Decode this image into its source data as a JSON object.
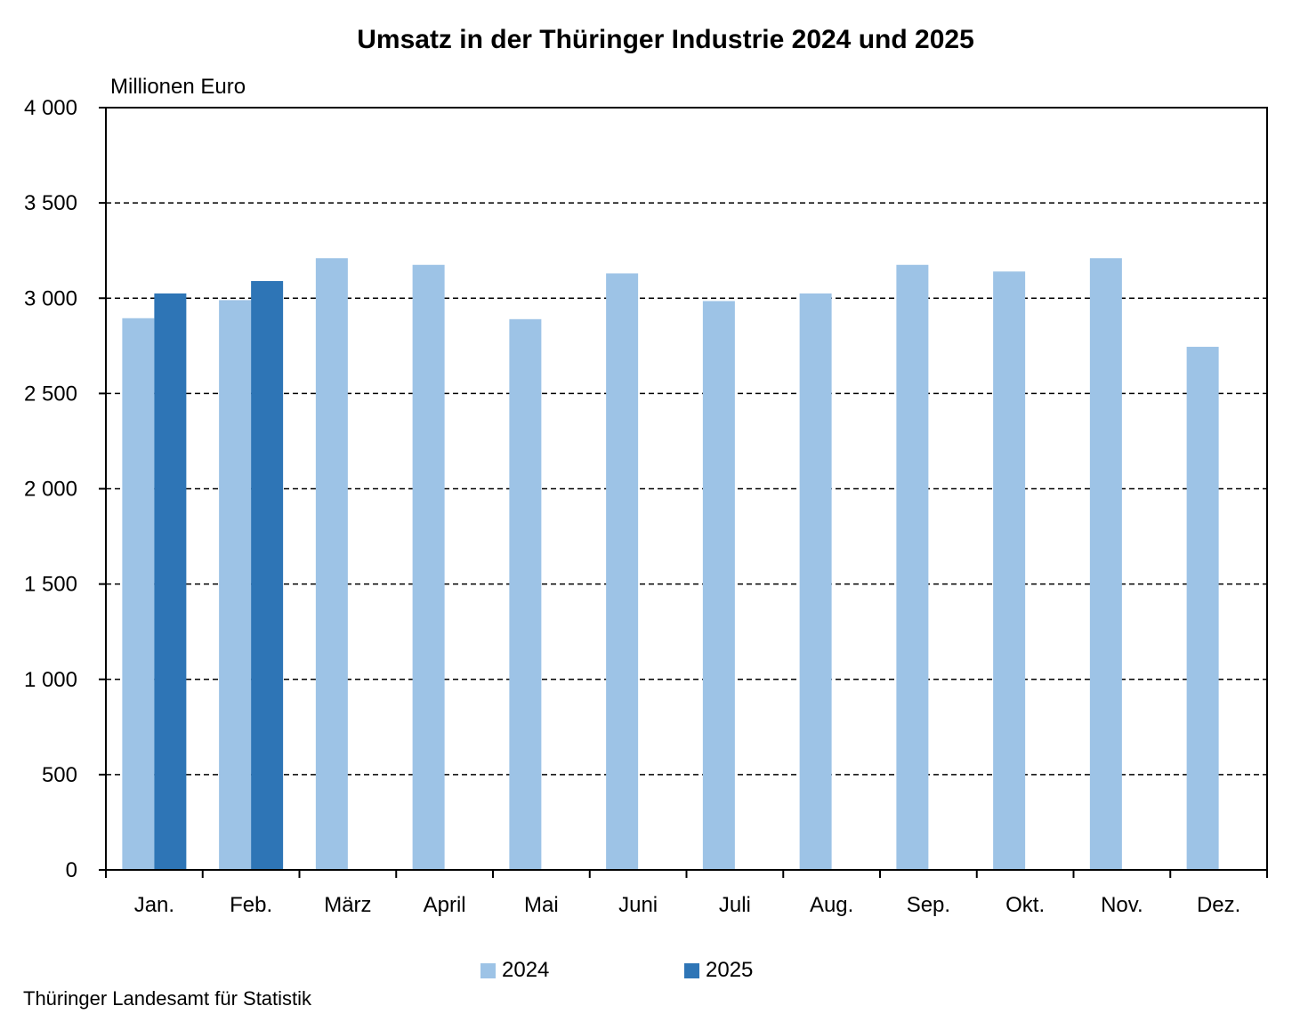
{
  "chart_data": {
    "type": "bar",
    "title": "Umsatz in der Thüringer Industrie 2024 und 2025",
    "ylabel": "Millionen Euro",
    "xlabel": "",
    "categories": [
      "Jan.",
      "Feb.",
      "März",
      "April",
      "Mai",
      "Juni",
      "Juli",
      "Aug.",
      "Sep.",
      "Okt.",
      "Nov.",
      "Dez."
    ],
    "series": [
      {
        "name": "2024",
        "color": "#9dc3e6",
        "values": [
          2895,
          2990,
          3210,
          3175,
          2890,
          3130,
          2985,
          3025,
          3175,
          3140,
          3210,
          2745
        ]
      },
      {
        "name": "2025",
        "color": "#2e75b6",
        "values": [
          3025,
          3090,
          null,
          null,
          null,
          null,
          null,
          null,
          null,
          null,
          null,
          null
        ]
      }
    ],
    "ylim": [
      0,
      4000
    ],
    "yticks": [
      0,
      500,
      1000,
      1500,
      2000,
      2500,
      3000,
      3500,
      4000
    ],
    "ytick_labels": [
      "0",
      "500",
      "1 000",
      "1 500",
      "2 000",
      "2 500",
      "3 000",
      "3 500",
      "4 000"
    ],
    "grid": "horizontal dashed",
    "legend_position": "bottom-center"
  },
  "source": "Thüringer Landesamt für Statistik"
}
